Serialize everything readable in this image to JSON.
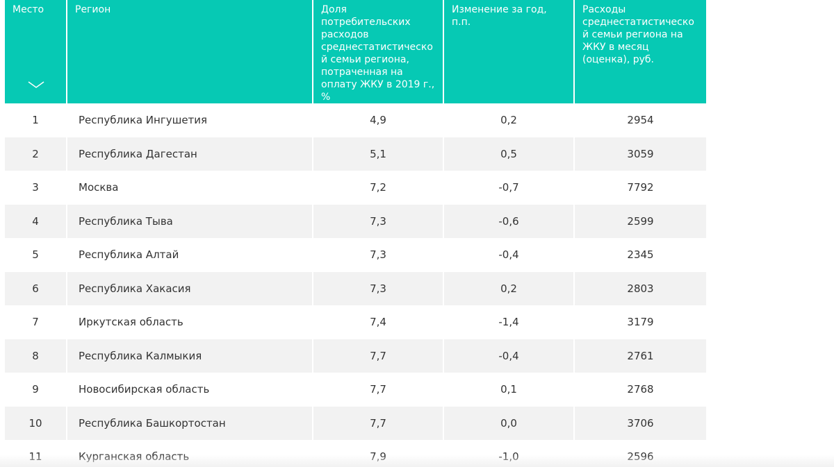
{
  "table": {
    "headers": [
      "Место",
      "Регион",
      "Доля потребительских расходов среднестатистической семьи региона, потраченная на оплату ЖКУ в 2019 г., %",
      "Изменение за год, п.п.",
      "Расходы среднестатистической семьи региона на ЖКУ в месяц (оценка), руб."
    ],
    "rows": [
      [
        "1",
        "Республика Ингушетия",
        "4,9",
        "0,2",
        "2954"
      ],
      [
        "2",
        "Республика Дагестан",
        "5,1",
        "0,5",
        "3059"
      ],
      [
        "3",
        "Москва",
        "7,2",
        "-0,7",
        "7792"
      ],
      [
        "4",
        "Республика Тыва",
        "7,3",
        "-0,6",
        "2599"
      ],
      [
        "5",
        "Республика Алтай",
        "7,3",
        "-0,4",
        "2345"
      ],
      [
        "6",
        "Республика Хакасия",
        "7,3",
        "0,2",
        "2803"
      ],
      [
        "7",
        "Иркутская область",
        "7,4",
        "-1,4",
        "3179"
      ],
      [
        "8",
        "Республика Калмыкия",
        "7,7",
        "-0,4",
        "2761"
      ],
      [
        "9",
        "Новосибирская область",
        "7,7",
        "0,1",
        "2768"
      ],
      [
        "10",
        "Республика Башкортостан",
        "7,7",
        "0,0",
        "3706"
      ],
      [
        "11",
        "Курганская область",
        "7,9",
        "-1,0",
        "2596"
      ]
    ]
  }
}
